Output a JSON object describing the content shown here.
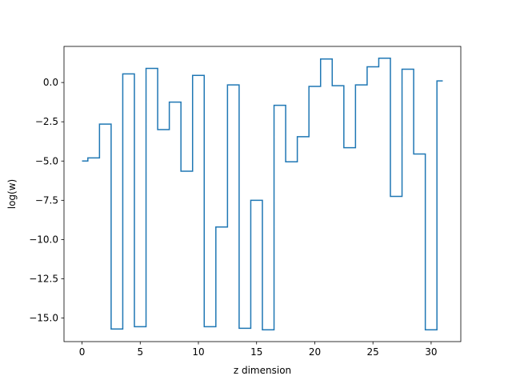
{
  "chart_data": {
    "type": "line",
    "drawstyle": "steps-mid",
    "xlabel": "z dimension",
    "ylabel": "log(w)",
    "xlim": [
      -1.55,
      32.55
    ],
    "ylim": [
      -16.5,
      2.3
    ],
    "xticks": [
      0,
      5,
      10,
      15,
      20,
      25,
      30
    ],
    "xtick_labels": [
      "0",
      "5",
      "10",
      "15",
      "20",
      "25",
      "30"
    ],
    "yticks": [
      0.0,
      -2.5,
      -5.0,
      -7.5,
      -10.0,
      -12.5,
      -15.0
    ],
    "ytick_labels": [
      "0.0",
      "−2.5",
      "−5.0",
      "−7.5",
      "−10.0",
      "−12.5",
      "−15.0"
    ],
    "grid": false,
    "series": [
      {
        "color": "#1f77b4",
        "x": [
          0,
          1,
          2,
          3,
          4,
          5,
          6,
          7,
          8,
          9,
          10,
          11,
          12,
          13,
          14,
          15,
          16,
          17,
          18,
          19,
          20,
          21,
          22,
          23,
          24,
          25,
          26,
          27,
          28,
          29,
          30,
          31
        ],
        "y": [
          -5.0,
          -4.8,
          -2.65,
          -15.7,
          0.55,
          -15.55,
          0.9,
          -3.0,
          -1.25,
          -5.65,
          0.45,
          -15.55,
          -9.2,
          -0.15,
          -15.65,
          -7.5,
          -15.75,
          -1.45,
          -5.05,
          -3.45,
          -0.25,
          1.5,
          -0.2,
          -4.15,
          -0.15,
          1.0,
          1.55,
          -7.25,
          0.85,
          -4.55,
          -15.75,
          0.1
        ]
      }
    ]
  }
}
